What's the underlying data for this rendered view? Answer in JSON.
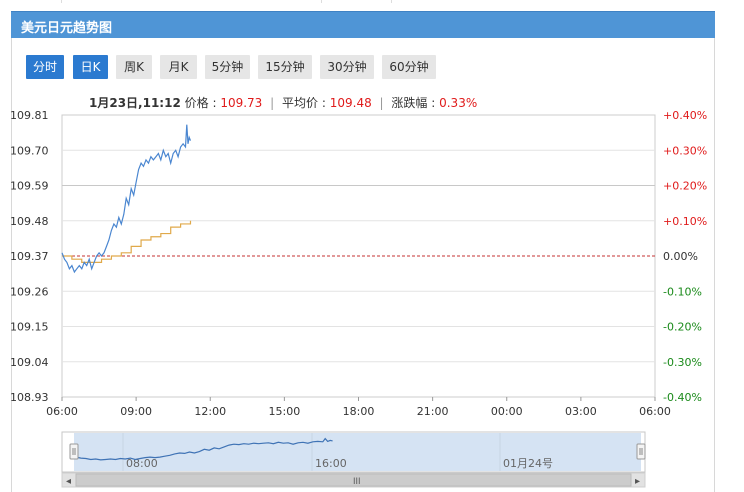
{
  "title": "美元日元趋势图",
  "tabs": [
    {
      "label": "分时",
      "active": true
    },
    {
      "label": "日K",
      "active": true
    },
    {
      "label": "周K",
      "active": false
    },
    {
      "label": "月K",
      "active": false
    },
    {
      "label": "5分钟",
      "active": false
    },
    {
      "label": "15分钟",
      "active": false
    },
    {
      "label": "30分钟",
      "active": false
    },
    {
      "label": "60分钟",
      "active": false
    }
  ],
  "info": {
    "datetime": "1月23日,11:12",
    "price_label": "价格 : ",
    "price": "109.73",
    "avg_label": "平均价 : ",
    "avg": "109.48",
    "change_label": "涨跌幅 : ",
    "change": "0.33%",
    "separator": "|"
  },
  "colors": {
    "title_bg": "#4f95d6",
    "tab_active": "#2b7ad0",
    "price_line": "#4a86d0",
    "avg_line": "#e0a94a",
    "up": "#e01b1b",
    "down": "#1a8a1a",
    "zero_line": "#c53030"
  },
  "chart_data": {
    "type": "line",
    "title": "",
    "xlabel": "",
    "ylabel": "",
    "x_ticks": [
      "06:00",
      "09:00",
      "12:00",
      "15:00",
      "18:00",
      "21:00",
      "00:00",
      "03:00",
      "06:00"
    ],
    "y_ticks": [
      "109.81",
      "109.70",
      "109.59",
      "109.48",
      "109.37",
      "109.26",
      "109.15",
      "109.04",
      "108.93"
    ],
    "y2_ticks": [
      "+0.40%",
      "+0.30%",
      "+0.20%",
      "+0.10%",
      "0.00%",
      "-0.10%",
      "-0.20%",
      "-0.30%",
      "-0.40%"
    ],
    "ylim": [
      108.93,
      109.81
    ],
    "x_range_hours": [
      0,
      24
    ],
    "baseline": 109.37,
    "grid": true,
    "series": [
      {
        "key": "price",
        "x_hours": [
          0.0,
          0.1,
          0.2,
          0.3,
          0.4,
          0.5,
          0.6,
          0.7,
          0.8,
          0.9,
          1.0,
          1.1,
          1.2,
          1.3,
          1.4,
          1.5,
          1.6,
          1.7,
          1.8,
          1.9,
          2.0,
          2.1,
          2.2,
          2.3,
          2.4,
          2.5,
          2.6,
          2.7,
          2.8,
          2.9,
          3.0,
          3.1,
          3.2,
          3.3,
          3.4,
          3.5,
          3.6,
          3.7,
          3.8,
          3.9,
          4.0,
          4.1,
          4.2,
          4.3,
          4.4,
          4.5,
          4.6,
          4.7,
          4.8,
          4.9,
          5.0,
          5.05,
          5.1,
          5.15,
          5.2
        ],
        "values": [
          109.38,
          109.36,
          109.35,
          109.33,
          109.34,
          109.32,
          109.33,
          109.34,
          109.33,
          109.35,
          109.34,
          109.36,
          109.33,
          109.35,
          109.37,
          109.38,
          109.37,
          109.38,
          109.4,
          109.42,
          109.45,
          109.47,
          109.46,
          109.49,
          109.47,
          109.5,
          109.55,
          109.53,
          109.58,
          109.56,
          109.6,
          109.64,
          109.66,
          109.65,
          109.67,
          109.66,
          109.68,
          109.67,
          109.68,
          109.69,
          109.67,
          109.7,
          109.68,
          109.69,
          109.66,
          109.69,
          109.7,
          109.68,
          109.71,
          109.72,
          109.71,
          109.78,
          109.72,
          109.74,
          109.73
        ]
      },
      {
        "key": "average",
        "x_hours": [
          0.0,
          0.4,
          0.8,
          1.2,
          1.6,
          2.0,
          2.4,
          2.8,
          3.2,
          3.6,
          4.0,
          4.4,
          4.8,
          5.2
        ],
        "values": [
          109.37,
          109.36,
          109.35,
          109.35,
          109.36,
          109.37,
          109.38,
          109.4,
          109.42,
          109.43,
          109.44,
          109.46,
          109.47,
          109.48
        ]
      }
    ]
  },
  "navigator": {
    "labels": [
      "08:00",
      "16:00",
      "01月24号"
    ],
    "scroll_grip": "III",
    "left_arrow": "◂",
    "right_arrow": "▸"
  }
}
